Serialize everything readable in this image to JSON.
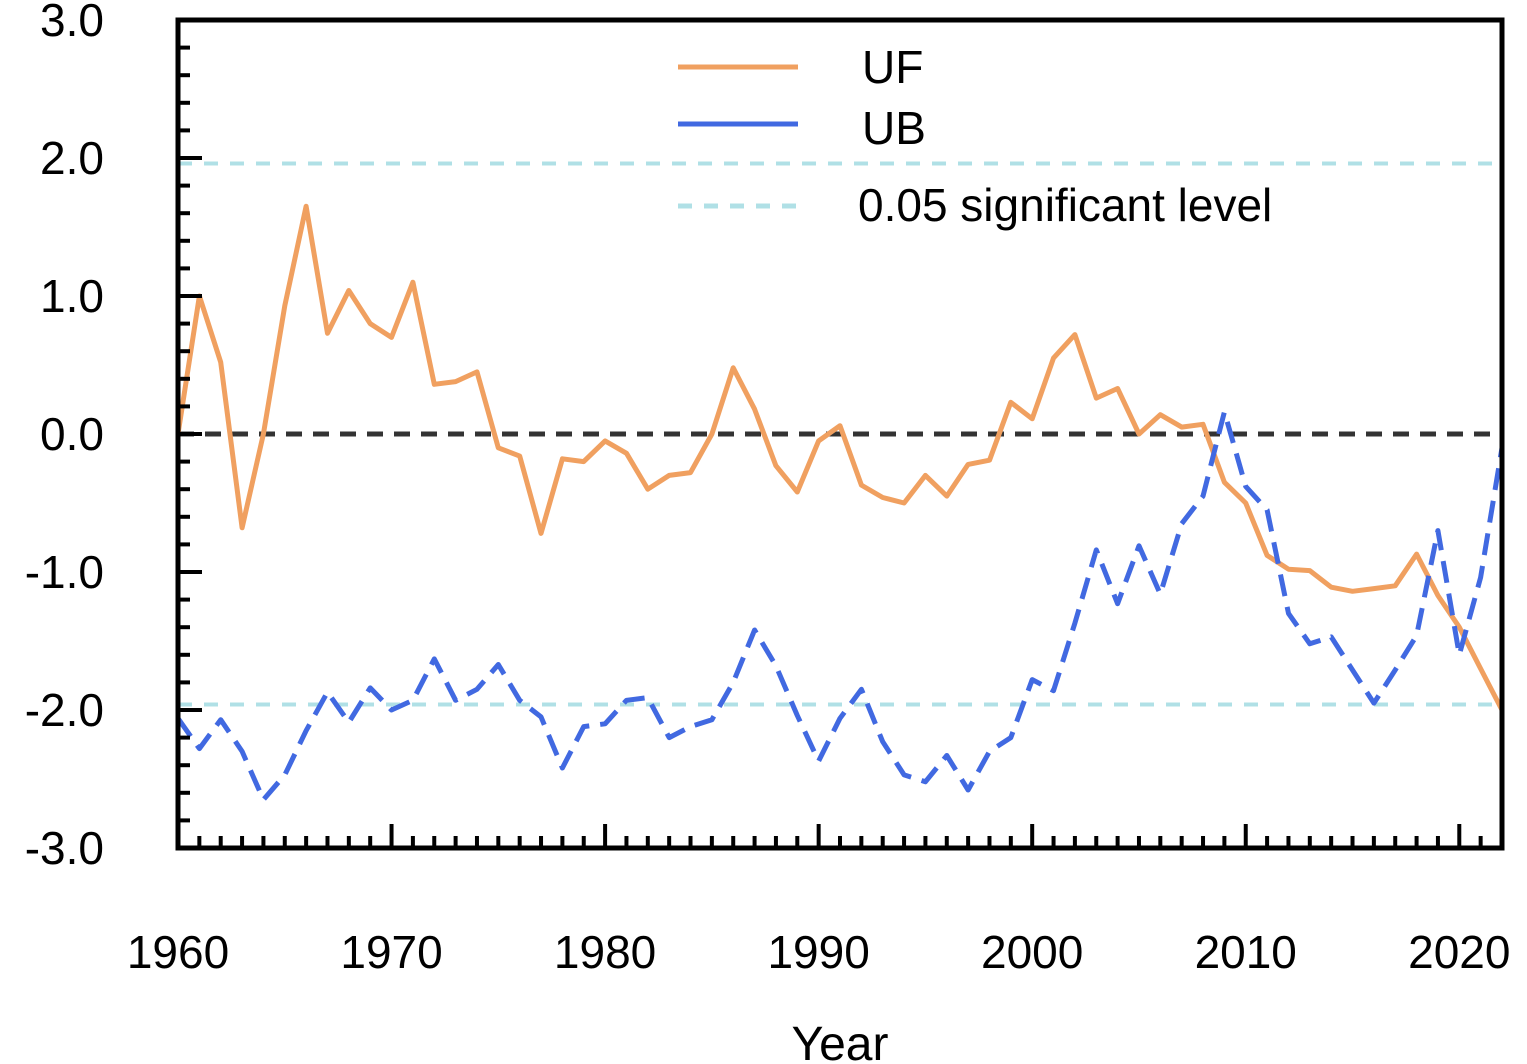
{
  "chart_data": {
    "type": "line",
    "title": "",
    "xlabel": "Year",
    "ylabel": "",
    "xlim": [
      1960,
      2022
    ],
    "ylim": [
      -3.0,
      3.0
    ],
    "grid": false,
    "legend_position": "top-right",
    "x_ticks": [
      "1960",
      "1970",
      "1980",
      "1990",
      "2000",
      "2010",
      "2020"
    ],
    "y_ticks": [
      "3.0",
      "2.0",
      "1.0",
      "0.0",
      "-1.0",
      "-2.0",
      "-3.0"
    ],
    "x": [
      1960,
      1961,
      1962,
      1963,
      1964,
      1965,
      1966,
      1967,
      1968,
      1969,
      1970,
      1971,
      1972,
      1973,
      1974,
      1975,
      1976,
      1977,
      1978,
      1979,
      1980,
      1981,
      1982,
      1983,
      1984,
      1985,
      1986,
      1987,
      1988,
      1989,
      1990,
      1991,
      1992,
      1993,
      1994,
      1995,
      1996,
      1997,
      1998,
      1999,
      2000,
      2001,
      2002,
      2003,
      2004,
      2005,
      2006,
      2007,
      2008,
      2009,
      2010,
      2011,
      2012,
      2013,
      2014,
      2015,
      2016,
      2017,
      2018,
      2019,
      2020,
      2021,
      2022
    ],
    "series": [
      {
        "name": "UF",
        "color": "#f0a060",
        "style": "solid",
        "values": [
          0.0,
          1.0,
          0.52,
          -0.68,
          0.0,
          0.93,
          1.65,
          0.73,
          1.04,
          0.8,
          0.7,
          1.1,
          0.36,
          0.38,
          0.45,
          -0.1,
          -0.16,
          -0.72,
          -0.18,
          -0.2,
          -0.05,
          -0.14,
          -0.4,
          -0.3,
          -0.28,
          0.0,
          0.48,
          0.18,
          -0.23,
          -0.42,
          -0.05,
          0.06,
          -0.37,
          -0.46,
          -0.5,
          -0.3,
          -0.45,
          -0.22,
          -0.19,
          0.23,
          0.11,
          0.55,
          0.72,
          0.26,
          0.33,
          0.0,
          0.14,
          0.05,
          0.07,
          -0.35,
          -0.5,
          -0.88,
          -0.98,
          -0.99,
          -1.11,
          -1.14,
          -1.12,
          -1.1,
          -0.87,
          -1.17,
          -1.4,
          -1.7,
          -2.0
        ]
      },
      {
        "name": "UB",
        "color": "#4169e1",
        "style": "dashed",
        "values": [
          -2.06,
          -2.28,
          -2.07,
          -2.3,
          -2.65,
          -2.47,
          -2.15,
          -1.87,
          -2.09,
          -1.84,
          -2.0,
          -1.93,
          -1.63,
          -1.93,
          -1.85,
          -1.67,
          -1.93,
          -2.05,
          -2.42,
          -2.12,
          -2.1,
          -1.93,
          -1.91,
          -2.2,
          -2.12,
          -2.07,
          -1.8,
          -1.42,
          -1.68,
          -2.04,
          -2.37,
          -2.06,
          -1.85,
          -2.23,
          -2.47,
          -2.52,
          -2.33,
          -2.58,
          -2.3,
          -2.2,
          -1.78,
          -1.86,
          -1.37,
          -0.84,
          -1.23,
          -0.81,
          -1.16,
          -0.65,
          -0.45,
          0.16,
          -0.38,
          -0.55,
          -1.3,
          -1.52,
          -1.47,
          -1.71,
          -1.95,
          -1.71,
          -1.46,
          -0.7,
          -1.6,
          -1.04,
          -0.1
        ]
      }
    ],
    "reference_lines": [
      {
        "name": "0.05 significant level",
        "values": [
          1.96,
          -1.96
        ],
        "color": "#b0e0e6",
        "style": "dashed"
      },
      {
        "name": "zero",
        "values": [
          0.0
        ],
        "color": "#333333",
        "style": "dashed"
      }
    ],
    "legend": [
      "UF",
      "UB",
      "0.05 significant level"
    ]
  }
}
